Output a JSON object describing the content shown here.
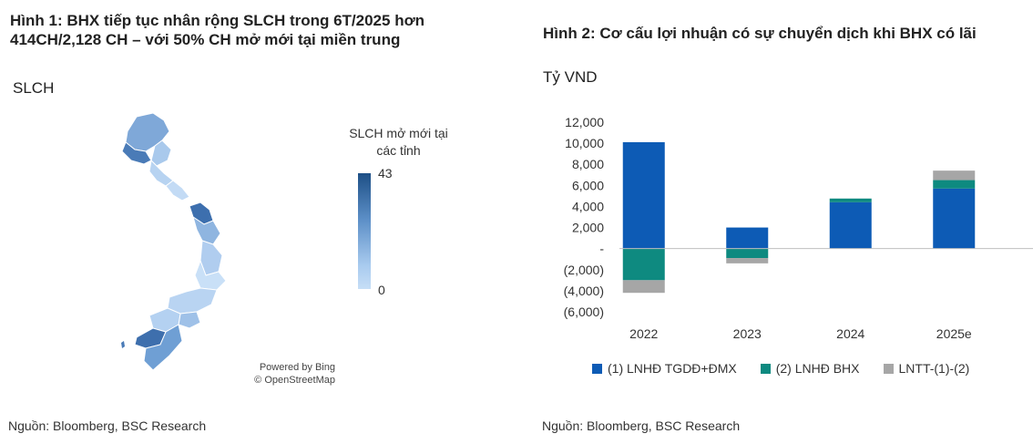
{
  "figure1": {
    "title": "Hình 1: BHX tiếp tục nhân rộng SLCH trong 6T/2025 hơn 414CH/2,128 CH – với 50% CH mở mới tại miền trung",
    "unit_label": "SLCH",
    "legend_title": "SLCH mở mới tại các tỉnh",
    "legend_max": "43",
    "legend_min": "0",
    "attribution_line1": "Powered by Bing",
    "attribution_line2": "© OpenStreetMap",
    "source": "Nguồn: Bloomberg, BSC Research",
    "colors": {
      "high": "#1d4f86",
      "mid": "#6f9fd4",
      "low": "#c6def6"
    }
  },
  "figure2": {
    "title": "Hình 2: Cơ cấu lợi nhuận có sự chuyển dịch khi BHX có lãi",
    "unit_label": "Tỷ VND",
    "source": "Nguồn: Bloomberg, BSC Research"
  },
  "chart_data": {
    "type": "bar",
    "stacked": true,
    "categories": [
      "2022",
      "2023",
      "2024",
      "2025e"
    ],
    "series": [
      {
        "name": "(1)  LNHĐ TGDĐ+ĐMX",
        "color": "#0d5bb5",
        "values": [
          10100,
          2000,
          4400,
          5700
        ]
      },
      {
        "name": "(2) LNHĐ BHX",
        "color": "#0e8a80",
        "values": [
          -3000,
          -900,
          350,
          800
        ]
      },
      {
        "name": "LNTT-(1)-(2)",
        "color": "#a6a6a6",
        "values": [
          -1200,
          -500,
          0,
          900
        ]
      }
    ],
    "ylim": [
      -6000,
      12000
    ],
    "yticks": [
      12000,
      10000,
      8000,
      6000,
      4000,
      2000,
      0,
      -2000,
      -4000,
      -6000
    ],
    "ytick_labels": [
      "12,000",
      "10,000",
      "8,000",
      "6,000",
      "4,000",
      "2,000",
      "-",
      "(2,000)",
      "(4,000)",
      "(6,000)"
    ],
    "grid": false,
    "legend_position": "bottom"
  }
}
